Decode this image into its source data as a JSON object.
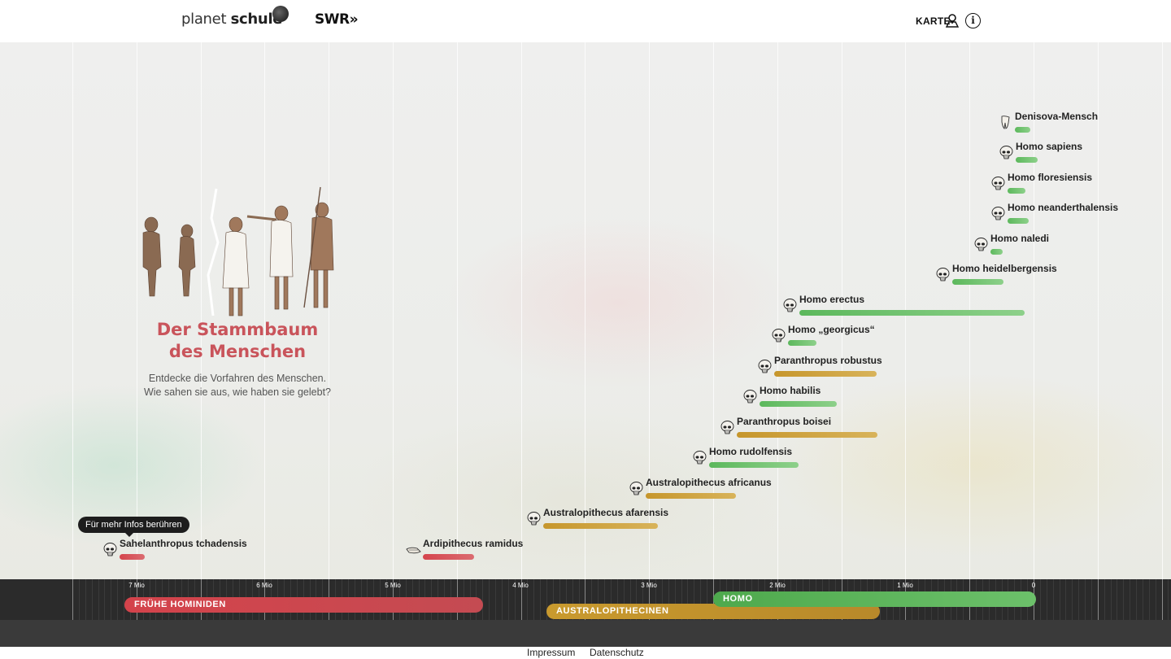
{
  "header": {
    "logo_planet": "planet",
    "logo_schule": "schule",
    "logo_swr": "SWR",
    "karte_label": "KARTE",
    "info_glyph": "i"
  },
  "intro": {
    "title_line1": "Der Stammbaum",
    "title_line2": "des Menschen",
    "text_line1": "Entdecke die Vorfahren des Menschen.",
    "text_line2": "Wie sahen sie aus, wie haben sie gelebt?"
  },
  "tooltip": "Für mehr Infos berühren",
  "species": [
    {
      "name": "Denisova-Mensch",
      "group": "homo",
      "icon": "tooth-icon"
    },
    {
      "name": "Homo sapiens",
      "group": "homo",
      "icon": "skull-icon"
    },
    {
      "name": "Homo floresiensis",
      "group": "homo",
      "icon": "skull-icon"
    },
    {
      "name": "Homo neanderthalensis",
      "group": "homo",
      "icon": "skull-icon"
    },
    {
      "name": "Homo naledi",
      "group": "homo",
      "icon": "skull-icon"
    },
    {
      "name": "Homo heidelbergensis",
      "group": "homo",
      "icon": "skull-icon"
    },
    {
      "name": "Homo erectus",
      "group": "homo",
      "icon": "skull-icon"
    },
    {
      "name": "Homo „georgicus“",
      "group": "homo",
      "icon": "skull-icon"
    },
    {
      "name": "Paranthropus robustus",
      "group": "australopithecinen",
      "icon": "skull-icon"
    },
    {
      "name": "Homo habilis",
      "group": "homo",
      "icon": "skull-icon"
    },
    {
      "name": "Paranthropus boisei",
      "group": "australopithecinen",
      "icon": "skull-icon"
    },
    {
      "name": "Homo rudolfensis",
      "group": "homo",
      "icon": "skull-icon"
    },
    {
      "name": "Australopithecus africanus",
      "group": "australopithecinen",
      "icon": "skull-icon"
    },
    {
      "name": "Australopithecus afarensis",
      "group": "australopithecinen",
      "icon": "skull-icon"
    },
    {
      "name": "Sahelanthropus tchadensis",
      "group": "fruehe-hominiden",
      "icon": "skull-icon"
    },
    {
      "name": "Ardipithecus ramidus",
      "group": "fruehe-hominiden",
      "icon": "jaw-icon"
    }
  ],
  "timeline": {
    "labels": [
      "7 Mio",
      "6 Mio",
      "5 Mio",
      "4 Mio",
      "3 Mio",
      "2 Mio",
      "1 Mio",
      "0"
    ],
    "groups": {
      "fruehe_hominiden": "FRÜHE HOMINIDEN",
      "australopithecinen": "AUSTRALOPITHECINEN",
      "homo": "HOMO"
    }
  },
  "colors": {
    "accent_title": "#c9545b",
    "red": "#d5454d",
    "gold": "#c6962c",
    "green": "#5cb85c",
    "timeline_bg": "#2b2b2b"
  },
  "footer": {
    "impressum": "Impressum",
    "datenschutz": "Datenschutz"
  }
}
